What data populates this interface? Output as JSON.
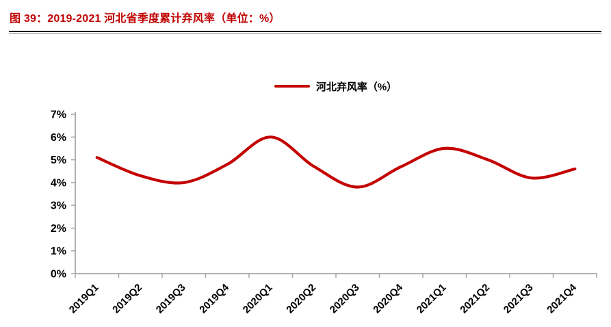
{
  "header": {
    "title": "图 39：2019-2021 河北省季度累计弃风率（单位：%）"
  },
  "legend": {
    "label": "河北弃风率（%）"
  },
  "colors": {
    "title_red": "#C00000",
    "line_red": "#C40000",
    "axis_gray": "#A6A6A6",
    "label_black": "#000000"
  },
  "chart_data": {
    "type": "line",
    "title": "2019-2021 河北省季度累计弃风率",
    "unit": "%",
    "smoothed": true,
    "grid": false,
    "legend_position": "top",
    "categories": [
      "2019Q1",
      "2019Q2",
      "2019Q3",
      "2019Q4",
      "2020Q1",
      "2020Q2",
      "2020Q3",
      "2020Q4",
      "2021Q1",
      "2021Q2",
      "2021Q3",
      "2021Q4"
    ],
    "series": [
      {
        "name": "河北弃风率（%）",
        "values": [
          5.1,
          4.3,
          4.0,
          4.8,
          6.0,
          4.7,
          3.8,
          4.7,
          5.5,
          5.0,
          4.2,
          4.6
        ]
      }
    ],
    "ylim": [
      0,
      7
    ],
    "y_tick_labels": [
      "0%",
      "1%",
      "2%",
      "3%",
      "4%",
      "5%",
      "6%",
      "7%"
    ],
    "xlabel": "",
    "ylabel": ""
  }
}
